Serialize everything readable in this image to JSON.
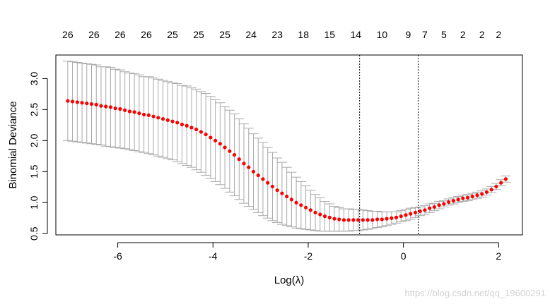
{
  "chart_data": {
    "type": "scatter",
    "xlabel": "Log(λ)",
    "ylabel": "Binomial Deviance",
    "xlim": [
      -7.3,
      2.5
    ],
    "ylim": [
      0.48,
      3.38
    ],
    "x_ticks": [
      -6,
      -4,
      -2,
      0,
      2
    ],
    "x_tick_labels": [
      "-6",
      "-4",
      "-2",
      "0",
      "2"
    ],
    "y_ticks": [
      0.5,
      1.0,
      1.5,
      2.0,
      2.5,
      3.0
    ],
    "y_tick_labels": [
      "0.5",
      "1.0",
      "1.5",
      "2.0",
      "2.5",
      "3.0"
    ],
    "top_axis_x": [
      -7.05,
      -6.5,
      -5.95,
      -5.4,
      -4.85,
      -4.3,
      -3.75,
      -3.2,
      -2.65,
      -2.1,
      -1.55,
      -1.0,
      -0.45,
      0.1,
      0.45,
      0.85,
      1.25,
      1.65,
      2.0
    ],
    "top_axis_labels": [
      "26",
      "26",
      "26",
      "26",
      "25",
      "25",
      "25",
      "24",
      "23",
      "18",
      "15",
      "14",
      "10",
      "9",
      "7",
      "5",
      "2",
      "2",
      "2"
    ],
    "vlines_x": [
      -0.92,
      0.31
    ],
    "point_color": "#ff0000",
    "errorbar_color": "#a8a8a8",
    "grid": false,
    "log_lambda": [
      -7.05,
      -6.95,
      -6.85,
      -6.75,
      -6.65,
      -6.55,
      -6.45,
      -6.35,
      -6.25,
      -6.15,
      -6.05,
      -5.95,
      -5.85,
      -5.75,
      -5.65,
      -5.55,
      -5.45,
      -5.35,
      -5.25,
      -5.15,
      -5.05,
      -4.95,
      -4.85,
      -4.75,
      -4.65,
      -4.55,
      -4.45,
      -4.35,
      -4.25,
      -4.15,
      -4.05,
      -3.95,
      -3.85,
      -3.75,
      -3.65,
      -3.55,
      -3.45,
      -3.35,
      -3.25,
      -3.15,
      -3.05,
      -2.95,
      -2.85,
      -2.75,
      -2.65,
      -2.55,
      -2.45,
      -2.35,
      -2.25,
      -2.15,
      -2.05,
      -1.95,
      -1.85,
      -1.75,
      -1.65,
      -1.55,
      -1.45,
      -1.35,
      -1.25,
      -1.15,
      -1.05,
      -0.95,
      -0.85,
      -0.75,
      -0.65,
      -0.55,
      -0.45,
      -0.35,
      -0.25,
      -0.15,
      -0.05,
      0.05,
      0.15,
      0.25,
      0.35,
      0.45,
      0.55,
      0.65,
      0.75,
      0.85,
      0.95,
      1.05,
      1.15,
      1.25,
      1.35,
      1.45,
      1.55,
      1.65,
      1.75,
      1.85,
      1.95,
      2.05,
      2.15
    ],
    "deviance": [
      2.64,
      2.63,
      2.62,
      2.61,
      2.6,
      2.59,
      2.58,
      2.56,
      2.55,
      2.54,
      2.52,
      2.51,
      2.49,
      2.47,
      2.46,
      2.44,
      2.42,
      2.41,
      2.39,
      2.37,
      2.35,
      2.33,
      2.31,
      2.29,
      2.26,
      2.24,
      2.21,
      2.18,
      2.14,
      2.1,
      2.05,
      2.0,
      1.95,
      1.89,
      1.83,
      1.77,
      1.7,
      1.63,
      1.57,
      1.5,
      1.44,
      1.38,
      1.32,
      1.26,
      1.2,
      1.15,
      1.1,
      1.05,
      1.0,
      0.96,
      0.92,
      0.88,
      0.84,
      0.81,
      0.78,
      0.76,
      0.74,
      0.73,
      0.72,
      0.72,
      0.72,
      0.72,
      0.72,
      0.72,
      0.72,
      0.73,
      0.73,
      0.74,
      0.75,
      0.76,
      0.78,
      0.8,
      0.82,
      0.84,
      0.86,
      0.88,
      0.91,
      0.93,
      0.96,
      0.98,
      1.01,
      1.03,
      1.05,
      1.07,
      1.08,
      1.1,
      1.12,
      1.14,
      1.17,
      1.21,
      1.26,
      1.32,
      1.38
    ],
    "lower": [
      2.0,
      1.99,
      1.98,
      1.97,
      1.96,
      1.95,
      1.94,
      1.93,
      1.91,
      1.9,
      1.89,
      1.88,
      1.87,
      1.85,
      1.84,
      1.82,
      1.81,
      1.79,
      1.77,
      1.75,
      1.73,
      1.71,
      1.69,
      1.66,
      1.63,
      1.6,
      1.57,
      1.53,
      1.49,
      1.44,
      1.39,
      1.34,
      1.29,
      1.23,
      1.17,
      1.11,
      1.05,
      0.99,
      0.94,
      0.89,
      0.84,
      0.79,
      0.75,
      0.71,
      0.68,
      0.65,
      0.63,
      0.61,
      0.59,
      0.58,
      0.57,
      0.56,
      0.55,
      0.54,
      0.54,
      0.54,
      0.54,
      0.54,
      0.54,
      0.54,
      0.55,
      0.55,
      0.56,
      0.57,
      0.58,
      0.6,
      0.61,
      0.63,
      0.65,
      0.67,
      0.69,
      0.71,
      0.73,
      0.76,
      0.79,
      0.81,
      0.84,
      0.87,
      0.9,
      0.93,
      0.96,
      0.98,
      1.0,
      1.02,
      1.03,
      1.05,
      1.07,
      1.09,
      1.12,
      1.16,
      1.21,
      1.27,
      1.33
    ],
    "upper": [
      3.28,
      3.27,
      3.26,
      3.25,
      3.24,
      3.23,
      3.22,
      3.19,
      3.19,
      3.18,
      3.15,
      3.14,
      3.11,
      3.09,
      3.08,
      3.06,
      3.03,
      3.03,
      3.01,
      2.99,
      2.97,
      2.95,
      2.93,
      2.92,
      2.89,
      2.88,
      2.85,
      2.83,
      2.79,
      2.76,
      2.71,
      2.66,
      2.61,
      2.55,
      2.49,
      2.43,
      2.35,
      2.27,
      2.2,
      2.11,
      2.04,
      1.97,
      1.89,
      1.81,
      1.72,
      1.65,
      1.57,
      1.49,
      1.41,
      1.34,
      1.27,
      1.2,
      1.13,
      1.08,
      1.02,
      0.98,
      0.94,
      0.92,
      0.9,
      0.9,
      0.89,
      0.89,
      0.88,
      0.87,
      0.86,
      0.86,
      0.85,
      0.85,
      0.85,
      0.85,
      0.87,
      0.89,
      0.91,
      0.92,
      0.93,
      0.95,
      0.98,
      0.99,
      1.02,
      1.03,
      1.06,
      1.08,
      1.1,
      1.12,
      1.13,
      1.15,
      1.17,
      1.19,
      1.22,
      1.26,
      1.31,
      1.37,
      1.43
    ]
  },
  "watermark": "https://blog.csdn.net/qq_19600291"
}
